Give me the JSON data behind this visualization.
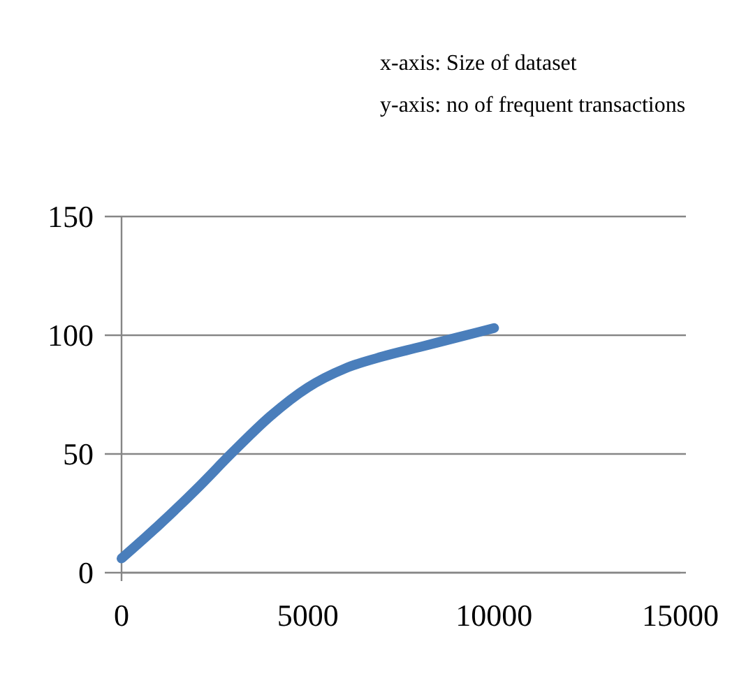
{
  "chart_data": {
    "type": "line",
    "annotations": [
      "x-axis: Size of dataset",
      "y-axis: no of frequent transactions"
    ],
    "x": [
      0,
      1000,
      2000,
      3000,
      4000,
      5000,
      6000,
      7000,
      8000,
      9000,
      10000
    ],
    "series": [
      {
        "color": "#4a7ebb",
        "values": [
          6,
          20,
          35,
          51,
          66,
          78,
          86,
          91,
          95,
          99,
          103
        ]
      }
    ],
    "xlim": [
      0,
      15000
    ],
    "xticks": [
      0,
      5000,
      10000,
      15000
    ],
    "ylim": [
      0,
      150
    ],
    "yticks": [
      0,
      50,
      100,
      150
    ],
    "grid": "y",
    "marker": "none",
    "line_style": "solid"
  }
}
